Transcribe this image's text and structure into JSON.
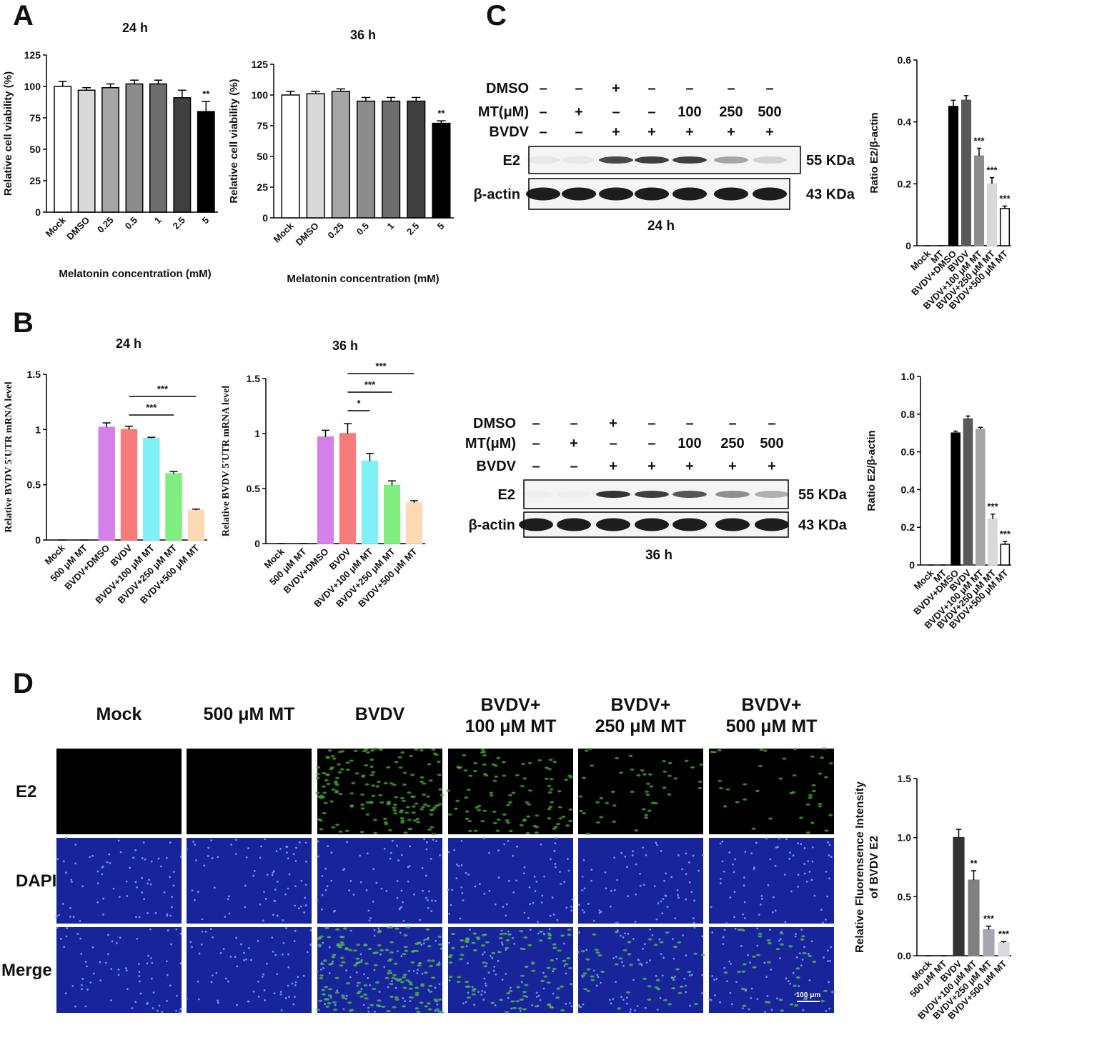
{
  "panel_labels": [
    "A",
    "B",
    "C",
    "D"
  ],
  "chart_data": [
    {
      "type": "bar",
      "title": "24 h",
      "xlabel": "Melatonin concentration (mM)",
      "ylabel": "Relative cell viability (%)",
      "categories": [
        "Mock",
        "DMSO",
        "0.25",
        "0.5",
        "1",
        "2.5",
        "5"
      ],
      "values": [
        100,
        97,
        99,
        102,
        102,
        91,
        80
      ],
      "errors": [
        4,
        2,
        3,
        3,
        3,
        6,
        8
      ],
      "colors": [
        "#ffffff",
        "#d9d9d9",
        "#a6a6a6",
        "#8c8c8c",
        "#6e6e6e",
        "#404040",
        "#000000"
      ],
      "significance": [
        null,
        null,
        null,
        null,
        null,
        null,
        "**"
      ],
      "ylim": [
        0,
        125
      ],
      "yticks": [
        0,
        25,
        50,
        75,
        100,
        125
      ]
    },
    {
      "type": "bar",
      "title": "36 h",
      "xlabel": "Melatonin concentration (mM)",
      "ylabel": "Relative cell viability (%)",
      "categories": [
        "Mock",
        "DMSO",
        "0.25",
        "0.5",
        "1",
        "2.5",
        "5"
      ],
      "values": [
        100,
        101,
        103,
        95,
        95,
        95,
        77
      ],
      "errors": [
        3,
        2,
        2,
        3,
        3,
        3,
        2
      ],
      "colors": [
        "#ffffff",
        "#d9d9d9",
        "#a6a6a6",
        "#8c8c8c",
        "#6e6e6e",
        "#404040",
        "#000000"
      ],
      "significance": [
        null,
        null,
        null,
        null,
        null,
        null,
        "**"
      ],
      "ylim": [
        0,
        125
      ],
      "yticks": [
        0,
        25,
        50,
        75,
        100,
        125
      ]
    },
    {
      "type": "bar",
      "title": "24 h",
      "ylabel": "Relative BVDV 5'UTR mRNA level",
      "categories": [
        "Mock",
        "500 μM MT",
        "BVDV+DMSO",
        "BVDV",
        "BVDV+100 μM MT",
        "BVDV+250 μM MT",
        "BVDV+500 μM MT"
      ],
      "values": [
        0,
        0,
        1.02,
        1.0,
        0.92,
        0.6,
        0.27
      ],
      "errors": [
        0,
        0,
        0.04,
        0.03,
        0.01,
        0.02,
        0.01
      ],
      "colors": [
        "#ffffff",
        "#ffffff",
        "#d580e8",
        "#f87b7b",
        "#7ff0f5",
        "#7fed7f",
        "#fdd9b5"
      ],
      "brackets": [
        {
          "from": 3,
          "to": 5,
          "text": "***"
        },
        {
          "from": 3,
          "to": 6,
          "text": "***"
        }
      ],
      "ylim": [
        0,
        1.5
      ],
      "yticks": [
        0,
        0.5,
        1,
        1.5
      ]
    },
    {
      "type": "bar",
      "title": "36 h",
      "ylabel": "Relative BVDV 5'UTR mRNA level",
      "categories": [
        "Mock",
        "500 μM MT",
        "BVDV+DMSO",
        "BVDV",
        "BVDV+100 μM MT",
        "BVDV+250 μM MT",
        "BVDV+500 μM MT"
      ],
      "values": [
        0,
        0,
        0.97,
        1.0,
        0.75,
        0.53,
        0.37
      ],
      "errors": [
        0,
        0,
        0.06,
        0.09,
        0.07,
        0.04,
        0.02
      ],
      "colors": [
        "#ffffff",
        "#ffffff",
        "#d580e8",
        "#f87b7b",
        "#7ff0f5",
        "#7fed7f",
        "#fdd9b5"
      ],
      "brackets": [
        {
          "from": 3,
          "to": 4,
          "text": "*"
        },
        {
          "from": 3,
          "to": 5,
          "text": "***"
        },
        {
          "from": 3,
          "to": 6,
          "text": "***"
        }
      ],
      "ylim": [
        0,
        1.5
      ],
      "yticks": [
        0,
        0.5,
        1,
        1.5
      ]
    },
    {
      "type": "bar",
      "ylabel": "Ratio E2/β-actin",
      "categories": [
        "Mock",
        "MT",
        "BVDV+DMSO",
        "BVDV",
        "BVDV+100 μM MT",
        "BVDV+250 μM MT",
        "BVDV+500 μM MT"
      ],
      "values": [
        0,
        0,
        0.45,
        0.47,
        0.29,
        0.2,
        0.12
      ],
      "errors": [
        0,
        0,
        0.02,
        0.015,
        0.025,
        0.02,
        0.008
      ],
      "colors": [
        "#ffffff",
        "#ffffff",
        "#000000",
        "#595959",
        "#8c8c8c",
        "#d9d9d9",
        "#ffffff"
      ],
      "significance": [
        null,
        null,
        null,
        null,
        "***",
        "***",
        "***"
      ],
      "ylim": [
        0,
        0.6
      ],
      "yticks": [
        0,
        0.2,
        0.4,
        0.6
      ]
    },
    {
      "type": "bar",
      "ylabel": "Ratio E2/β-actin",
      "categories": [
        "Mock",
        "MT",
        "BVDV+DMSO",
        "BVDV",
        "BVDV+100 μM MT",
        "BVDV+250 μM MT",
        "BVDV+500 μM MT"
      ],
      "values": [
        0,
        0,
        0.7,
        0.775,
        0.72,
        0.245,
        0.11
      ],
      "errors": [
        0,
        0,
        0.01,
        0.015,
        0.01,
        0.025,
        0.015
      ],
      "colors": [
        "#ffffff",
        "#ffffff",
        "#000000",
        "#595959",
        "#a6a6a6",
        "#d9d9d9",
        "#ffffff"
      ],
      "significance": [
        null,
        null,
        null,
        null,
        null,
        "***",
        "***"
      ],
      "ylim": [
        0,
        1
      ],
      "yticks": [
        0,
        0.2,
        0.4,
        0.6,
        0.8,
        {
          "value": 1,
          "label": "1.0"
        }
      ]
    },
    {
      "type": "bar",
      "ylabel": [
        "Relative Fluorensence Intensity",
        "of BVDV E2"
      ],
      "categories": [
        "Mock",
        "500 μM MT",
        "BVDV",
        "BVDV+100 μM MT",
        "BVDV+250 μM MT",
        "BVDV+500 μM MT"
      ],
      "values": [
        0,
        0,
        1.0,
        0.64,
        0.22,
        0.11
      ],
      "errors": [
        0,
        0,
        0.07,
        0.08,
        0.03,
        0.01
      ],
      "colors": [
        "#ffffff",
        "#ffffff",
        "#333333",
        "#808080",
        "#a6a6b0",
        "#d9d9e0"
      ],
      "significance": [
        null,
        null,
        null,
        "**",
        "***",
        "***"
      ],
      "ylim": [
        0,
        1.5
      ],
      "yticks": [
        {
          "value": 0,
          "label": "0.0"
        },
        {
          "value": 0.5,
          "label": "0.5"
        },
        {
          "value": 1,
          "label": "1.0"
        },
        {
          "value": 1.5,
          "label": "1.5"
        }
      ]
    }
  ],
  "blots": [
    {
      "rows": [
        {
          "label": "DMSO",
          "cells": [
            "–",
            "–",
            "+",
            "–",
            "–",
            "–",
            "–"
          ]
        },
        {
          "label": "MT(μM)",
          "cells": [
            "–",
            "+",
            "–",
            "–",
            "100",
            "250",
            "500"
          ]
        },
        {
          "label": "BVDV",
          "cells": [
            "–",
            "–",
            "+",
            "+",
            "+",
            "+",
            "+"
          ]
        }
      ],
      "bands": [
        {
          "label": "E2",
          "kda": "55 KDa"
        },
        {
          "label": "β-actin",
          "kda": "43 KDa"
        }
      ],
      "caption": "24 h"
    },
    {
      "rows": [
        {
          "label": "DMSO",
          "cells": [
            "–",
            "–",
            "+",
            "–",
            "–",
            "–",
            "–"
          ]
        },
        {
          "label": "MT(μM)",
          "cells": [
            "–",
            "+",
            "–",
            "–",
            "100",
            "250",
            "500"
          ]
        },
        {
          "label": "BVDV",
          "cells": [
            "–",
            "–",
            "+",
            "+",
            "+",
            "+",
            "+"
          ]
        }
      ],
      "bands": [
        {
          "label": "E2",
          "kda": "55 KDa"
        },
        {
          "label": "β-actin",
          "kda": "43 KDa"
        }
      ],
      "caption": "36 h"
    }
  ],
  "microscopy": {
    "columns": [
      [
        "Mock"
      ],
      [
        "500 μM MT"
      ],
      [
        "BVDV"
      ],
      [
        "BVDV+",
        "100 μM MT"
      ],
      [
        "BVDV+",
        "250 μM MT"
      ],
      [
        "BVDV+",
        "500 μM MT"
      ]
    ],
    "rows": [
      "E2",
      "DAPI",
      "Merge"
    ],
    "scale_bar": "100 μm"
  }
}
